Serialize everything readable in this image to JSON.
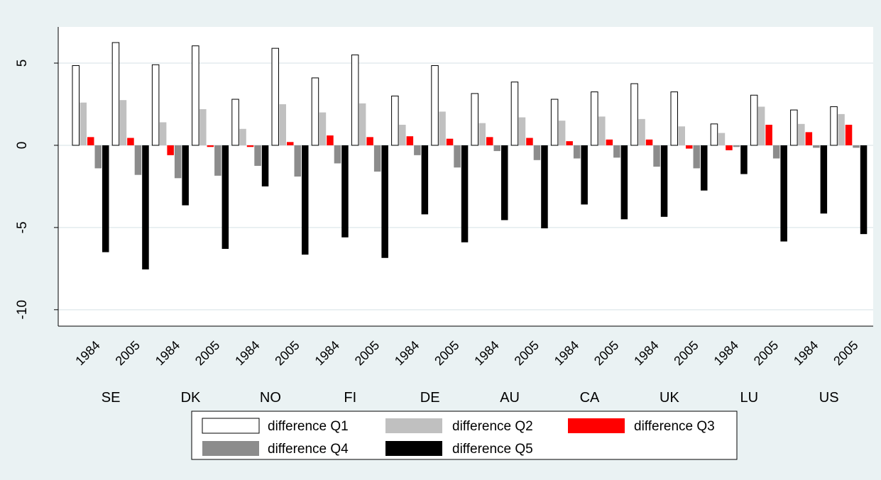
{
  "chart_data": {
    "type": "bar",
    "title": "",
    "xlabel": "",
    "ylabel": "",
    "ylim": [
      -11,
      7.2
    ],
    "yticks": [
      5,
      0,
      -5,
      -10
    ],
    "grid": true,
    "legend_position": "bottom",
    "countries": [
      "SE",
      "DK",
      "NO",
      "FI",
      "DE",
      "AU",
      "CA",
      "UK",
      "LU",
      "US"
    ],
    "years": [
      "1984",
      "2005"
    ],
    "series": [
      {
        "name": "difference Q1",
        "color": "#ffffff",
        "values": [
          4.85,
          6.25,
          4.9,
          6.05,
          2.8,
          5.9,
          4.1,
          5.5,
          3.0,
          4.85,
          3.15,
          3.85,
          2.8,
          3.25,
          3.75,
          3.25,
          1.3,
          3.05,
          2.15,
          2.35
        ]
      },
      {
        "name": "difference Q2",
        "color": "#c0c0c0",
        "values": [
          2.6,
          2.75,
          1.4,
          2.2,
          1.0,
          2.5,
          2.0,
          2.55,
          1.25,
          2.05,
          1.35,
          1.7,
          1.5,
          1.75,
          1.6,
          1.15,
          0.75,
          2.35,
          1.3,
          1.9
        ]
      },
      {
        "name": "difference Q3",
        "color": "#ff0000",
        "values": [
          0.5,
          0.45,
          -0.6,
          -0.1,
          -0.1,
          0.2,
          0.6,
          0.5,
          0.55,
          0.4,
          0.5,
          0.45,
          0.25,
          0.35,
          0.35,
          -0.2,
          -0.3,
          1.25,
          0.8,
          1.25
        ]
      },
      {
        "name": "difference Q4",
        "color": "#8c8c8c",
        "values": [
          -1.4,
          -1.8,
          -2.0,
          -1.85,
          -1.25,
          -1.9,
          -1.1,
          -1.6,
          -0.6,
          -1.35,
          -0.35,
          -0.9,
          -0.8,
          -0.75,
          -1.3,
          -1.4,
          -0.1,
          -0.8,
          -0.15,
          -0.15
        ]
      },
      {
        "name": "difference Q5",
        "color": "#000000",
        "values": [
          -6.5,
          -7.55,
          -3.65,
          -6.3,
          -2.5,
          -6.65,
          -5.6,
          -6.85,
          -4.2,
          -5.9,
          -4.55,
          -5.05,
          -3.6,
          -4.5,
          -4.35,
          -2.75,
          -1.75,
          -5.85,
          -4.15,
          -5.4
        ]
      }
    ]
  }
}
